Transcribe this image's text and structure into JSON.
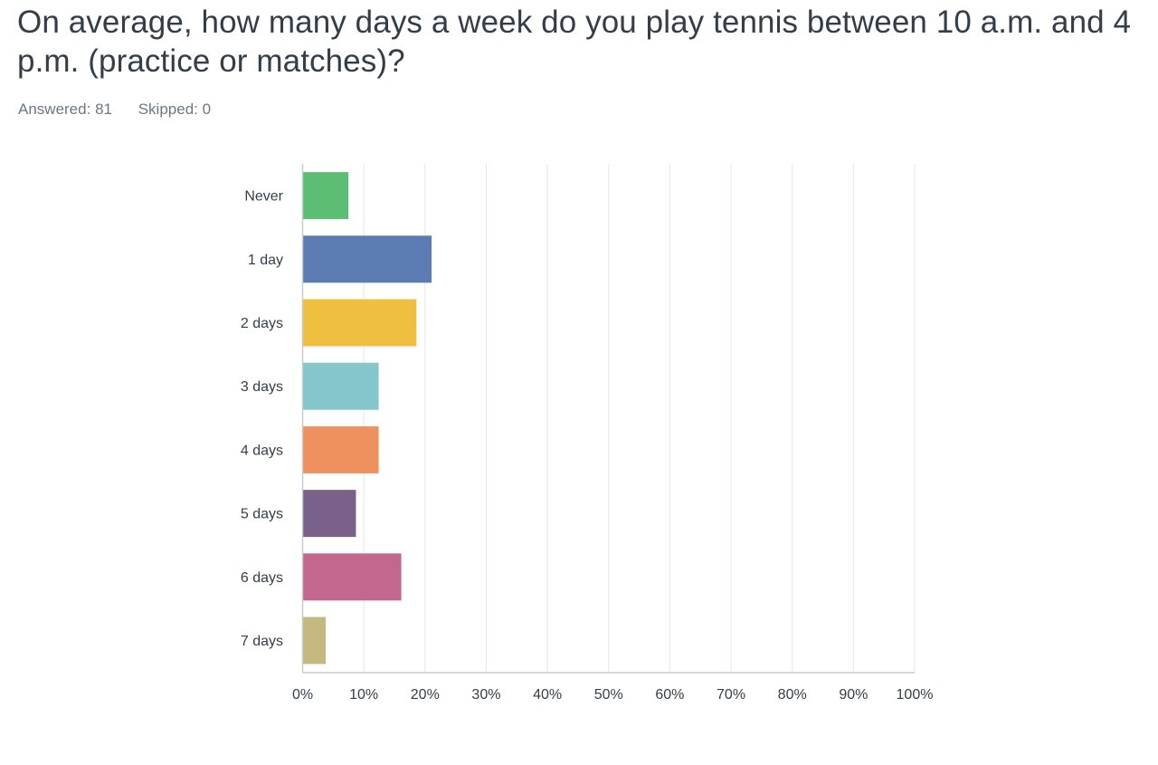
{
  "question": {
    "title": "On average, how many days a week do you play tennis between 10 a.m. and 4 p.m. (practice or matches)?"
  },
  "stats": {
    "answered_label": "Answered:",
    "answered_value": "81",
    "skipped_label": "Skipped:",
    "skipped_value": "0"
  },
  "chart_data": {
    "type": "bar",
    "orientation": "horizontal",
    "categories": [
      "Never",
      "1 day",
      "2 days",
      "3 days",
      "4 days",
      "5 days",
      "6 days",
      "7 days"
    ],
    "values": [
      7.41,
      20.99,
      18.52,
      12.35,
      12.35,
      8.64,
      16.05,
      3.7
    ],
    "colors": [
      "#5bbe74",
      "#5b7bb2",
      "#efbf40",
      "#84c6cb",
      "#ef915e",
      "#7a618a",
      "#c4678f",
      "#c5b880"
    ],
    "xlim": [
      0,
      100
    ],
    "xticks": [
      0,
      10,
      20,
      30,
      40,
      50,
      60,
      70,
      80,
      90,
      100
    ],
    "tick_suffix": "%",
    "grid": true
  }
}
